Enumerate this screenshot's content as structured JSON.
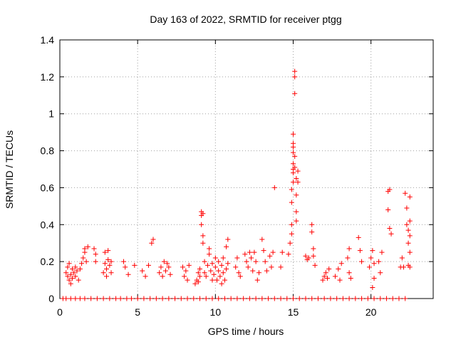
{
  "chart_data": {
    "type": "scatter",
    "title": "Day 163 of 2022, SRMTID for receiver ptgg",
    "xlabel": "GPS time / hours",
    "ylabel": "SRMTID / TECUs",
    "xlim": [
      0,
      24
    ],
    "ylim": [
      0,
      1.4
    ],
    "xticks": [
      0,
      5,
      10,
      15,
      20
    ],
    "xtick_labels": [
      "0",
      "5",
      "10",
      "15",
      "20"
    ],
    "yticks": [
      0,
      0.2,
      0.4,
      0.6,
      0.8,
      1.0,
      1.2,
      1.4
    ],
    "ytick_labels": [
      "0",
      "0.2",
      "0.4",
      "0.6",
      "0.8",
      "1",
      "1.2",
      "1.4"
    ],
    "grid": true,
    "marker": "+",
    "color": "#ff0000",
    "series": [
      {
        "name": "SRMTID",
        "points": [
          [
            0.2,
            0.0
          ],
          [
            0.4,
            0.0
          ],
          [
            0.7,
            0.0
          ],
          [
            1.0,
            0.0
          ],
          [
            1.3,
            0.0
          ],
          [
            1.6,
            0.0
          ],
          [
            2.0,
            0.0
          ],
          [
            2.4,
            0.0
          ],
          [
            2.8,
            0.0
          ],
          [
            3.2,
            0.0
          ],
          [
            3.6,
            0.0
          ],
          [
            3.9,
            0.0
          ],
          [
            4.3,
            0.0
          ],
          [
            4.6,
            0.0
          ],
          [
            5.0,
            0.0
          ],
          [
            5.4,
            0.0
          ],
          [
            5.8,
            0.0
          ],
          [
            6.2,
            0.0
          ],
          [
            6.6,
            0.0
          ],
          [
            7.0,
            0.0
          ],
          [
            7.4,
            0.0
          ],
          [
            7.8,
            0.0
          ],
          [
            8.2,
            0.0
          ],
          [
            8.6,
            0.0
          ],
          [
            9.0,
            0.0
          ],
          [
            9.4,
            0.0
          ],
          [
            9.8,
            0.0
          ],
          [
            10.2,
            0.0
          ],
          [
            10.6,
            0.0
          ],
          [
            11.0,
            0.0
          ],
          [
            11.4,
            0.0
          ],
          [
            11.8,
            0.0
          ],
          [
            12.2,
            0.0
          ],
          [
            12.6,
            0.0
          ],
          [
            13.0,
            0.0
          ],
          [
            13.4,
            0.0
          ],
          [
            13.8,
            0.0
          ],
          [
            14.2,
            0.0
          ],
          [
            14.6,
            0.0
          ],
          [
            15.0,
            0.0
          ],
          [
            15.4,
            0.0
          ],
          [
            15.8,
            0.0
          ],
          [
            16.2,
            0.0
          ],
          [
            16.6,
            0.0
          ],
          [
            17.0,
            0.0
          ],
          [
            17.4,
            0.0
          ],
          [
            17.8,
            0.0
          ],
          [
            18.2,
            0.0
          ],
          [
            18.6,
            0.0
          ],
          [
            19.0,
            0.0
          ],
          [
            19.4,
            0.0
          ],
          [
            19.8,
            0.0
          ],
          [
            20.2,
            0.0
          ],
          [
            20.6,
            0.0
          ],
          [
            21.0,
            0.0
          ],
          [
            21.4,
            0.0
          ],
          [
            21.8,
            0.0
          ],
          [
            22.2,
            0.0
          ],
          [
            0.4,
            0.14
          ],
          [
            0.5,
            0.12
          ],
          [
            0.5,
            0.17
          ],
          [
            0.6,
            0.1
          ],
          [
            0.6,
            0.19
          ],
          [
            0.7,
            0.13
          ],
          [
            0.7,
            0.08
          ],
          [
            0.8,
            0.16
          ],
          [
            0.8,
            0.11
          ],
          [
            0.9,
            0.14
          ],
          [
            1.0,
            0.12
          ],
          [
            1.0,
            0.17
          ],
          [
            1.1,
            0.15
          ],
          [
            1.2,
            0.1
          ],
          [
            1.3,
            0.16
          ],
          [
            1.4,
            0.19
          ],
          [
            1.5,
            0.22
          ],
          [
            1.6,
            0.27
          ],
          [
            1.6,
            0.25
          ],
          [
            1.7,
            0.2
          ],
          [
            1.8,
            0.28
          ],
          [
            2.2,
            0.27
          ],
          [
            2.3,
            0.24
          ],
          [
            2.3,
            0.2
          ],
          [
            2.8,
            0.14
          ],
          [
            2.9,
            0.19
          ],
          [
            2.9,
            0.25
          ],
          [
            3.0,
            0.16
          ],
          [
            3.0,
            0.12
          ],
          [
            3.1,
            0.21
          ],
          [
            3.1,
            0.26
          ],
          [
            3.2,
            0.18
          ],
          [
            3.3,
            0.14
          ],
          [
            3.3,
            0.2
          ],
          [
            4.1,
            0.2
          ],
          [
            4.2,
            0.17
          ],
          [
            4.4,
            0.13
          ],
          [
            4.8,
            0.18
          ],
          [
            5.3,
            0.15
          ],
          [
            5.5,
            0.12
          ],
          [
            5.7,
            0.18
          ],
          [
            5.9,
            0.3
          ],
          [
            6.0,
            0.32
          ],
          [
            6.4,
            0.14
          ],
          [
            6.5,
            0.17
          ],
          [
            6.6,
            0.12
          ],
          [
            6.7,
            0.2
          ],
          [
            6.8,
            0.15
          ],
          [
            6.9,
            0.19
          ],
          [
            7.0,
            0.17
          ],
          [
            7.1,
            0.13
          ],
          [
            7.9,
            0.17
          ],
          [
            8.0,
            0.12
          ],
          [
            8.1,
            0.15
          ],
          [
            8.2,
            0.1
          ],
          [
            8.3,
            0.18
          ],
          [
            8.7,
            0.08
          ],
          [
            8.8,
            0.1
          ],
          [
            8.9,
            0.14
          ],
          [
            8.9,
            0.09
          ],
          [
            9.0,
            0.12
          ],
          [
            9.0,
            0.16
          ],
          [
            9.1,
            0.47
          ],
          [
            9.1,
            0.45
          ],
          [
            9.1,
            0.4
          ],
          [
            9.2,
            0.34
          ],
          [
            9.2,
            0.3
          ],
          [
            9.2,
            0.46
          ],
          [
            9.3,
            0.14
          ],
          [
            9.3,
            0.2
          ],
          [
            9.4,
            0.12
          ],
          [
            9.5,
            0.18
          ],
          [
            9.6,
            0.27
          ],
          [
            9.6,
            0.24
          ],
          [
            9.7,
            0.15
          ],
          [
            9.8,
            0.1
          ],
          [
            9.8,
            0.19
          ],
          [
            9.9,
            0.13
          ],
          [
            10.0,
            0.22
          ],
          [
            10.0,
            0.17
          ],
          [
            10.1,
            0.1
          ],
          [
            10.2,
            0.15
          ],
          [
            10.2,
            0.2
          ],
          [
            10.3,
            0.12
          ],
          [
            10.4,
            0.18
          ],
          [
            10.4,
            0.08
          ],
          [
            10.5,
            0.14
          ],
          [
            10.5,
            0.22
          ],
          [
            10.6,
            0.1
          ],
          [
            10.7,
            0.16
          ],
          [
            10.7,
            0.28
          ],
          [
            10.8,
            0.32
          ],
          [
            10.8,
            0.19
          ],
          [
            11.3,
            0.17
          ],
          [
            11.4,
            0.22
          ],
          [
            11.5,
            0.14
          ],
          [
            11.6,
            0.12
          ],
          [
            11.9,
            0.24
          ],
          [
            12.0,
            0.2
          ],
          [
            12.1,
            0.17
          ],
          [
            12.2,
            0.25
          ],
          [
            12.3,
            0.22
          ],
          [
            12.4,
            0.15
          ],
          [
            12.5,
            0.25
          ],
          [
            12.6,
            0.2
          ],
          [
            12.7,
            0.1
          ],
          [
            12.8,
            0.14
          ],
          [
            13.0,
            0.32
          ],
          [
            13.1,
            0.26
          ],
          [
            13.2,
            0.2
          ],
          [
            13.3,
            0.15
          ],
          [
            13.5,
            0.23
          ],
          [
            13.6,
            0.17
          ],
          [
            13.7,
            0.25
          ],
          [
            13.8,
            0.6
          ],
          [
            14.2,
            0.17
          ],
          [
            14.3,
            0.25
          ],
          [
            14.7,
            0.24
          ],
          [
            14.8,
            0.3
          ],
          [
            14.9,
            0.35
          ],
          [
            14.9,
            0.4
          ],
          [
            14.9,
            0.52
          ],
          [
            14.9,
            0.59
          ],
          [
            15.0,
            0.73
          ],
          [
            15.0,
            0.68
          ],
          [
            15.0,
            0.82
          ],
          [
            15.0,
            0.89
          ],
          [
            15.0,
            0.84
          ],
          [
            15.0,
            0.79
          ],
          [
            15.0,
            0.7
          ],
          [
            15.0,
            0.63
          ],
          [
            15.1,
            1.23
          ],
          [
            15.1,
            1.2
          ],
          [
            15.1,
            1.11
          ],
          [
            15.1,
            0.77
          ],
          [
            15.1,
            0.71
          ],
          [
            15.2,
            0.65
          ],
          [
            15.2,
            0.56
          ],
          [
            15.2,
            0.47
          ],
          [
            15.2,
            0.42
          ],
          [
            15.3,
            0.69
          ],
          [
            15.3,
            0.63
          ],
          [
            15.8,
            0.23
          ],
          [
            15.9,
            0.21
          ],
          [
            16.0,
            0.22
          ],
          [
            16.2,
            0.4
          ],
          [
            16.2,
            0.36
          ],
          [
            16.3,
            0.27
          ],
          [
            16.3,
            0.23
          ],
          [
            16.4,
            0.18
          ],
          [
            16.9,
            0.1
          ],
          [
            17.0,
            0.12
          ],
          [
            17.1,
            0.14
          ],
          [
            17.2,
            0.11
          ],
          [
            17.3,
            0.16
          ],
          [
            17.7,
            0.12
          ],
          [
            17.9,
            0.16
          ],
          [
            18.0,
            0.1
          ],
          [
            18.1,
            0.19
          ],
          [
            18.5,
            0.22
          ],
          [
            18.6,
            0.27
          ],
          [
            18.6,
            0.14
          ],
          [
            18.7,
            0.11
          ],
          [
            19.2,
            0.33
          ],
          [
            19.3,
            0.26
          ],
          [
            19.4,
            0.2
          ],
          [
            19.9,
            0.17
          ],
          [
            20.0,
            0.22
          ],
          [
            20.1,
            0.26
          ],
          [
            20.1,
            0.06
          ],
          [
            20.2,
            0.11
          ],
          [
            20.2,
            0.19
          ],
          [
            20.5,
            0.2
          ],
          [
            20.6,
            0.14
          ],
          [
            20.7,
            0.25
          ],
          [
            21.1,
            0.58
          ],
          [
            21.1,
            0.48
          ],
          [
            21.2,
            0.59
          ],
          [
            21.2,
            0.38
          ],
          [
            21.3,
            0.35
          ],
          [
            21.9,
            0.17
          ],
          [
            22.0,
            0.22
          ],
          [
            22.1,
            0.17
          ],
          [
            22.2,
            0.57
          ],
          [
            22.3,
            0.49
          ],
          [
            22.3,
            0.4
          ],
          [
            22.4,
            0.37
          ],
          [
            22.4,
            0.3
          ],
          [
            22.4,
            0.18
          ],
          [
            22.5,
            0.55
          ],
          [
            22.5,
            0.42
          ],
          [
            22.5,
            0.34
          ],
          [
            22.5,
            0.25
          ],
          [
            22.5,
            0.17
          ]
        ]
      }
    ]
  }
}
